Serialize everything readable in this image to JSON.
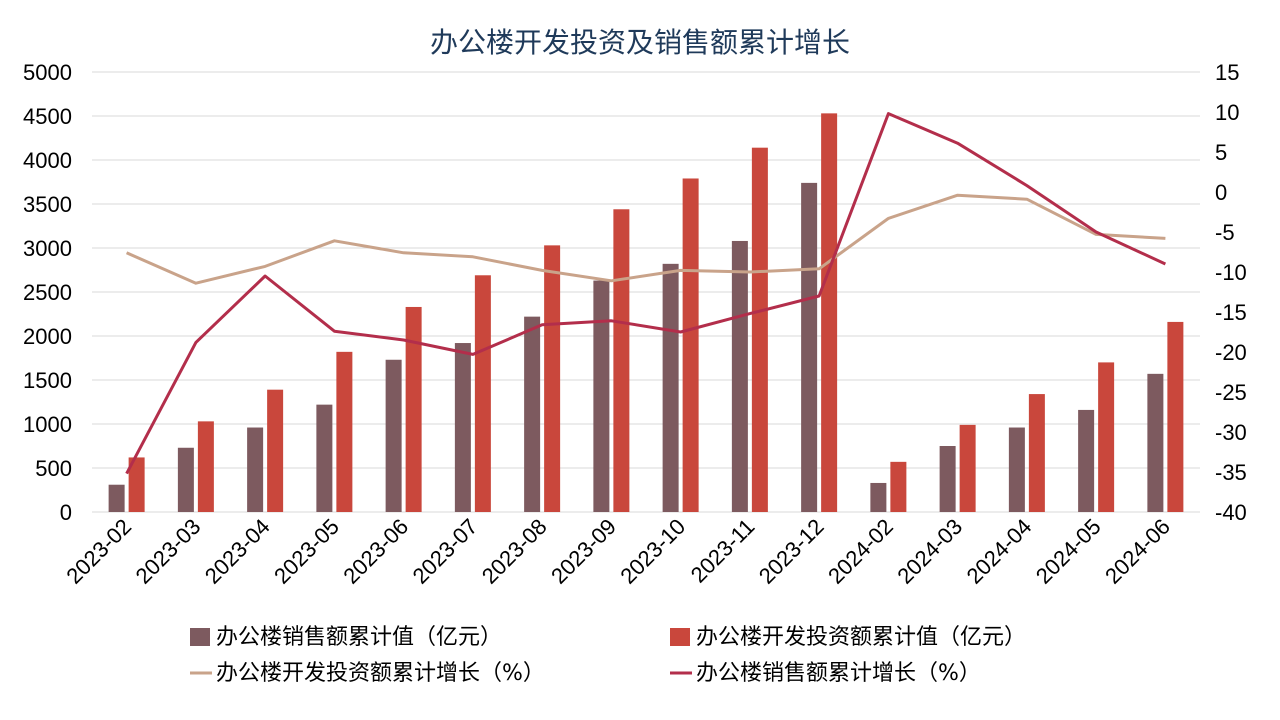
{
  "chart_data": {
    "type": "bar",
    "title": "办公楼开发投资及销售额累计增长",
    "categories": [
      "2023-02",
      "2023-03",
      "2023-04",
      "2023-05",
      "2023-06",
      "2023-07",
      "2023-08",
      "2023-09",
      "2023-10",
      "2023-11",
      "2023-12",
      "2024-02",
      "2024-03",
      "2024-04",
      "2024-05",
      "2024-06"
    ],
    "y_left": {
      "min": 0,
      "max": 5000,
      "ticks": [
        "0",
        "500",
        "1000",
        "1500",
        "2000",
        "2500",
        "3000",
        "3500",
        "4000",
        "4500",
        "5000"
      ]
    },
    "y_right": {
      "min": -40,
      "max": 15,
      "ticks": [
        "-40",
        "-35",
        "-30",
        "-25",
        "-20",
        "-15",
        "-10",
        "-5",
        "0",
        "5",
        "10",
        "15"
      ]
    },
    "grid": true,
    "legend_position": "bottom",
    "series": [
      {
        "name": "办公楼销售额累计值（亿元）",
        "type": "bar",
        "axis": "left",
        "color": "#7d5a5f",
        "values": [
          310,
          730,
          960,
          1220,
          1730,
          1920,
          2220,
          2630,
          2820,
          3080,
          3740,
          330,
          750,
          960,
          1160,
          1570
        ]
      },
      {
        "name": "办公楼开发投资额累计值（亿元）",
        "type": "bar",
        "axis": "left",
        "color": "#c9473c",
        "values": [
          620,
          1030,
          1390,
          1820,
          2330,
          2690,
          3030,
          3440,
          3790,
          4140,
          4530,
          570,
          990,
          1340,
          1700,
          2160
        ]
      },
      {
        "name": "办公楼开发投资额累计增长（%）",
        "type": "line",
        "axis": "right",
        "color": "#c9a38a",
        "values": [
          -7.6,
          -11.4,
          -9.3,
          -6.1,
          -7.6,
          -8.1,
          -9.8,
          -11.1,
          -9.8,
          -10.0,
          -9.6,
          -3.3,
          -0.4,
          -0.9,
          -5.3,
          -5.8
        ]
      },
      {
        "name": "办公楼销售额累计增长（%）",
        "type": "line",
        "axis": "right",
        "color": "#b32e4b",
        "values": [
          -35.2,
          -18.8,
          -10.5,
          -17.4,
          -18.5,
          -20.3,
          -16.6,
          -16.1,
          -17.5,
          -15.2,
          -13.0,
          9.8,
          6.1,
          0.8,
          -5.0,
          -9.0
        ]
      }
    ]
  }
}
